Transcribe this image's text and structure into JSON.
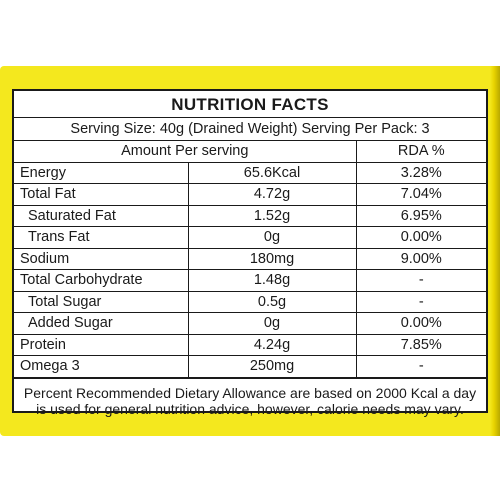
{
  "label": {
    "title": "NUTRITION FACTS",
    "serving": "Serving Size: 40g (Drained Weight) Serving Per Pack: 3",
    "columns": {
      "amount": "Amount Per serving",
      "rda": "RDA %"
    },
    "rows": [
      {
        "name": "Energy",
        "amount": "65.6Kcal",
        "rda": "3.28%",
        "indent": false
      },
      {
        "name": "Total Fat",
        "amount": "4.72g",
        "rda": "7.04%",
        "indent": false
      },
      {
        "name": "Saturated Fat",
        "amount": "1.52g",
        "rda": "6.95%",
        "indent": true
      },
      {
        "name": "Trans Fat",
        "amount": "0g",
        "rda": "0.00%",
        "indent": true
      },
      {
        "name": "Sodium",
        "amount": "180mg",
        "rda": "9.00%",
        "indent": false
      },
      {
        "name": "Total Carbohydrate",
        "amount": "1.48g",
        "rda": "-",
        "indent": false
      },
      {
        "name": "Total Sugar",
        "amount": "0.5g",
        "rda": "-",
        "indent": true
      },
      {
        "name": "Added Sugar",
        "amount": "0g",
        "rda": "0.00%",
        "indent": true
      },
      {
        "name": "Protein",
        "amount": "4.24g",
        "rda": "7.85%",
        "indent": false
      },
      {
        "name": "Omega 3",
        "amount": "250mg",
        "rda": "-",
        "indent": false
      }
    ],
    "footnote": "Percent Recommended Dietary Allowance are based on 2000 Kcal a day is used for general nutrition advice, however, calorie needs may vary."
  },
  "colors": {
    "frame": "#f4e81e",
    "ink": "#1a1a1a",
    "panel": "#ffffff"
  }
}
